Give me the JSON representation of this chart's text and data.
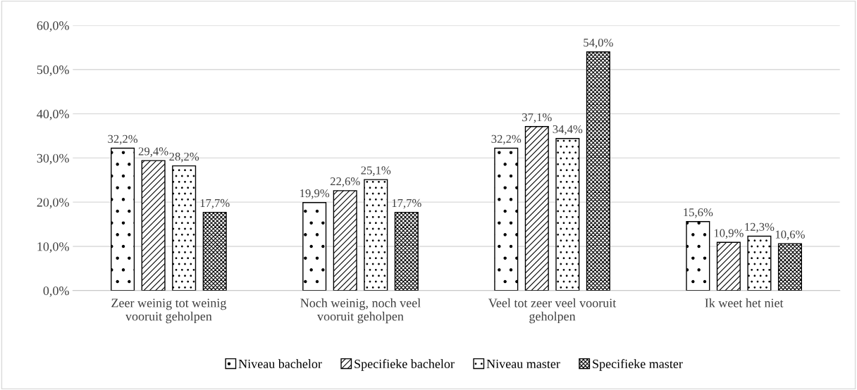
{
  "chart_data": {
    "type": "bar",
    "categories": [
      "Zeer weinig tot weinig\nvooruit geholpen",
      "Noch weinig, noch veel\nvooruit geholpen",
      "Veel tot zeer veel vooruit\ngeholpen",
      "Ik weet het niet"
    ],
    "series": [
      {
        "name": "Niveau bachelor",
        "color": "#000000",
        "values": [
          32.2,
          19.9,
          32.2,
          15.6
        ],
        "value_labels": [
          "32,2%",
          "19,9%",
          "32,2%",
          "15,6%"
        ]
      },
      {
        "name": "Specifieke bachelor",
        "color": "#000000",
        "values": [
          29.4,
          22.6,
          37.1,
          10.9
        ],
        "value_labels": [
          "29,4%",
          "22,6%",
          "37,1%",
          "10,9%"
        ]
      },
      {
        "name": "Niveau master",
        "color": "#000000",
        "values": [
          28.2,
          25.1,
          34.4,
          12.3
        ],
        "value_labels": [
          "28,2%",
          "25,1%",
          "34,4%",
          "12,3%"
        ]
      },
      {
        "name": "Specifieke master",
        "color": "#000000",
        "values": [
          17.7,
          17.7,
          54.0,
          10.6
        ],
        "value_labels": [
          "17,7%",
          "17,7%",
          "54,0%",
          "10,6%"
        ]
      }
    ],
    "ylim": [
      0,
      60
    ],
    "yticks": [
      {
        "value": 0,
        "label": "0,0%"
      },
      {
        "value": 10,
        "label": "10,0%"
      },
      {
        "value": 20,
        "label": "20,0%"
      },
      {
        "value": 30,
        "label": "30,0%"
      },
      {
        "value": 40,
        "label": "40,0%"
      },
      {
        "value": 50,
        "label": "50,0%"
      },
      {
        "value": 60,
        "label": "60,0%"
      }
    ],
    "grid": "y",
    "legend": "bottom"
  }
}
